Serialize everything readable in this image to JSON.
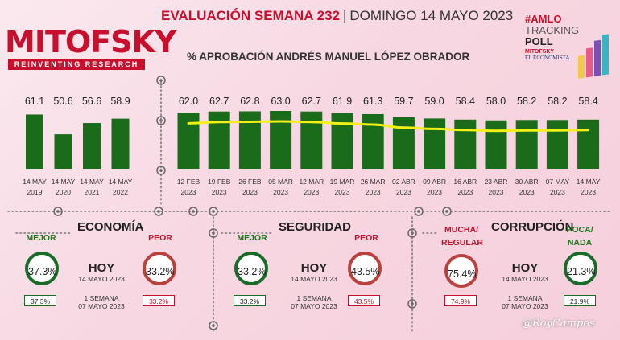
{
  "logo": {
    "title": "MITOFSKY",
    "tagline": "REINVENTING RESEARCH"
  },
  "header": {
    "title": "EVALUACIÓN SEMANA 232",
    "date": "DOMINGO 14 MAYO 2023"
  },
  "tracking": {
    "line1": "#AMLO",
    "line2": "TRACKING",
    "line3": "POLL",
    "line4": "MITOFSKY",
    "line5": "EL ECONOMISTA"
  },
  "chart_data": {
    "type": "bar",
    "title": "% APROBACIÓN ANDRÉS MANUEL LÓPEZ OBRADOR",
    "annual": {
      "categories": [
        "14 MAY 2019",
        "14 MAY 2020",
        "14 MAY 2021",
        "14 MAY 2022"
      ],
      "values": [
        61.1,
        50.6,
        56.6,
        58.9
      ]
    },
    "weekly": {
      "categories": [
        "12 FEB 2023",
        "19 FEB 2023",
        "26 FEB 2023",
        "05 MAR 2023",
        "12 MAR 2023",
        "19 MAR 2023",
        "26 MAR 2023",
        "02 ABR 2023",
        "09 ABR 2023",
        "16 ABR 2023",
        "23 ABR 2023",
        "30 ABR 2023",
        "07 MAY 2023",
        "14 MAY 2023"
      ],
      "values": [
        62.0,
        62.7,
        62.8,
        63.0,
        62.7,
        61.9,
        61.3,
        59.7,
        59.0,
        58.4,
        58.0,
        58.2,
        58.2,
        58.4
      ],
      "trend_line": true
    },
    "colors": {
      "bar": "#1a6b1a",
      "trend": "#f2ef19"
    }
  },
  "sections": [
    {
      "title": "ECONOMÍA",
      "left_label": "MEJOR",
      "left_value": "37.3%",
      "left_prev": "37.3%",
      "right_label": "PEOR",
      "right_value": "33.2%",
      "right_prev": "33.2%",
      "today": "HOY",
      "today_date": "14 MAYO 2023",
      "prev_label": "1 SEMANA",
      "prev_date": "07 MAYO 2023"
    },
    {
      "title": "SEGURIDAD",
      "left_label": "MEJOR",
      "left_value": "33.2%",
      "left_prev": "33.2%",
      "right_label": "PEOR",
      "right_value": "43.5%",
      "right_prev": "43.5%",
      "today": "HOY",
      "today_date": "14 MAYO 2023",
      "prev_label": "1 SEMANA",
      "prev_date": "07 MAYO 2023"
    },
    {
      "title": "CORRUPCIÓN",
      "left_label": "MUCHA/ REGULAR",
      "left_value": "75.4%",
      "left_prev": "74.9%",
      "right_label": "POCA/ NADA",
      "right_value": "21.3%",
      "right_prev": "21.9%",
      "today": "HOY",
      "today_date": "14 MAYO 2023",
      "prev_label": "1 SEMANA",
      "prev_date": "07 MAYO 2023"
    }
  ],
  "signature": "@RoyCampos"
}
